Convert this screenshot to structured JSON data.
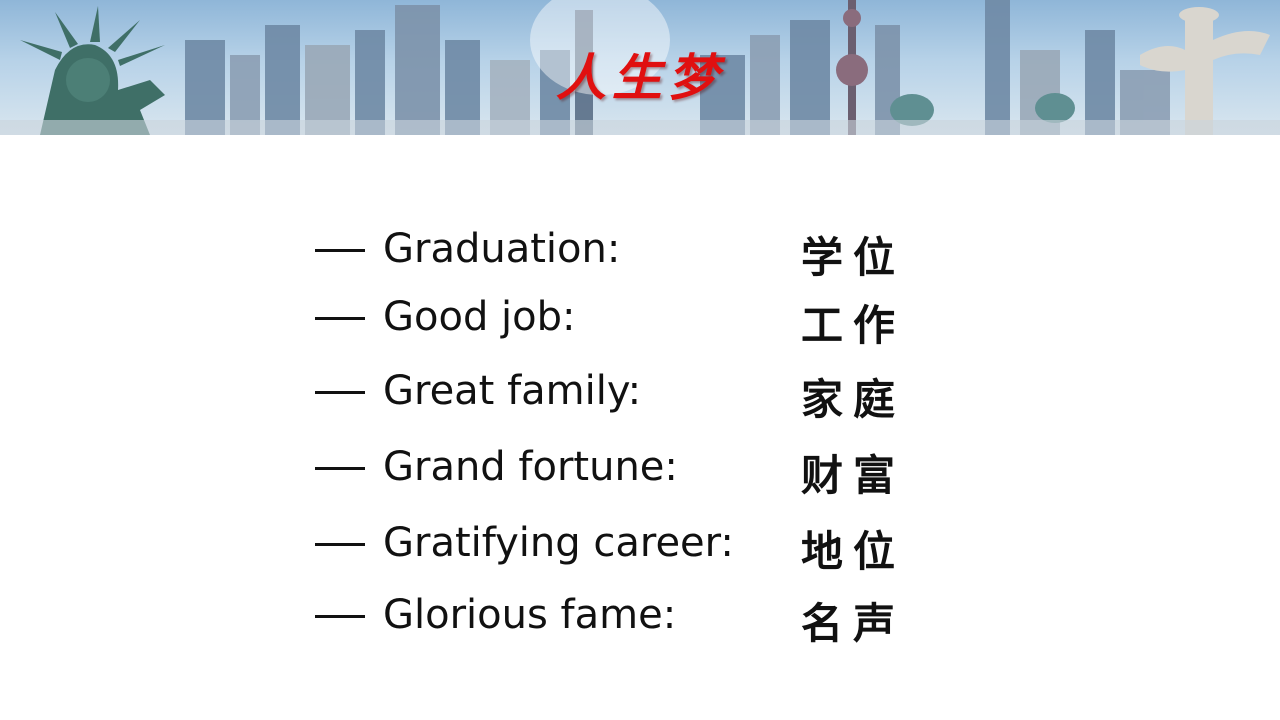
{
  "header": {
    "title": "人生梦"
  },
  "items": [
    {
      "en": "Graduation:",
      "zh": "学位"
    },
    {
      "en": "Good job:",
      "zh": "工作"
    },
    {
      "en": "Great family:",
      "zh": "家庭"
    },
    {
      "en": "Grand fortune:",
      "zh": "财富"
    },
    {
      "en": "Gratifying career:",
      "zh": "地位"
    },
    {
      "en": "Glorious fame:",
      "zh": "名声"
    }
  ],
  "colors": {
    "title": "#e01010",
    "text": "#111111",
    "banner_sky": "#8fb6d8"
  }
}
